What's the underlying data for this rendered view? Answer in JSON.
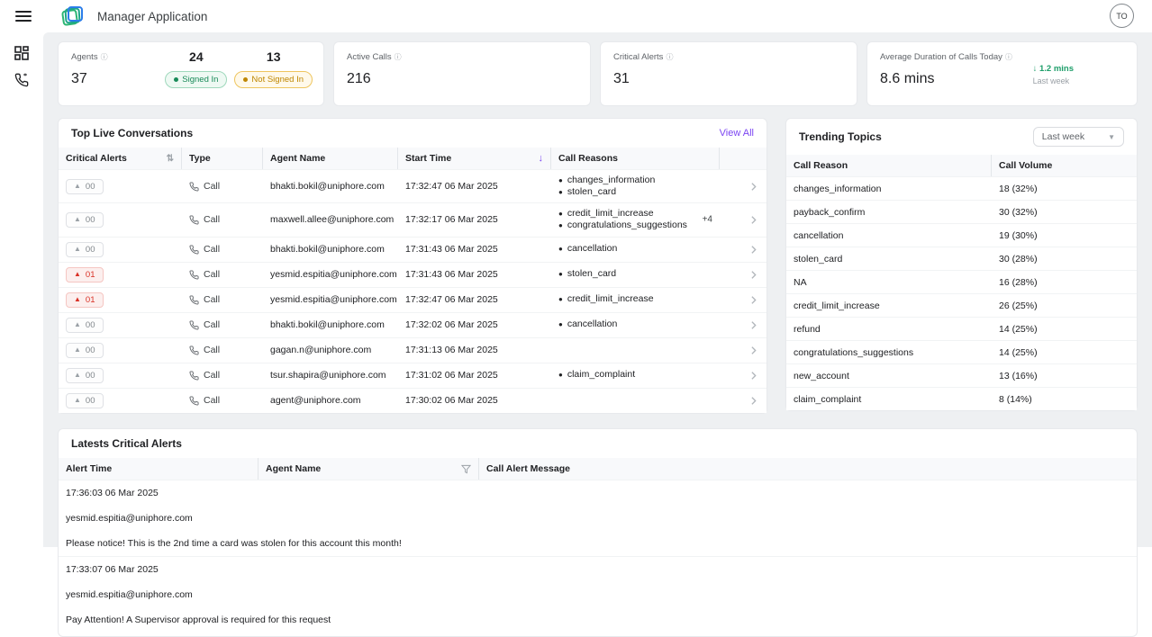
{
  "topbar": {
    "title": "Manager Application",
    "avatar": "TO"
  },
  "sidebar": {
    "items": [
      "menu",
      "dashboard",
      "calls"
    ]
  },
  "stats": {
    "agents": {
      "label": "Agents",
      "value": "37",
      "signed_in_count": "24",
      "signed_in_label": "Signed In",
      "not_signed_in_count": "13",
      "not_signed_in_label": "Not Signed In"
    },
    "active_calls": {
      "label": "Active Calls",
      "value": "216"
    },
    "critical_alerts": {
      "label": "Critical Alerts",
      "value": "31"
    },
    "avg_duration": {
      "label": "Average Duration of Calls Today",
      "value": "8.6 mins",
      "delta": "↓ 1.2 mins",
      "delta_caption": "Last week"
    }
  },
  "conversations": {
    "title": "Top Live Conversations",
    "view_all": "View All",
    "columns": {
      "alerts": "Critical Alerts",
      "type": "Type",
      "agent": "Agent Name",
      "start": "Start Time",
      "reasons": "Call Reasons"
    },
    "rows": [
      {
        "alerts": "00",
        "severity": "normal",
        "type": "Call",
        "agent": "bhakti.bokil@uniphore.com",
        "start_time": "17:32:47 06 Mar 2025",
        "reasons": [
          "changes_information",
          "stolen_card"
        ],
        "more": ""
      },
      {
        "alerts": "00",
        "severity": "normal",
        "type": "Call",
        "agent": "maxwell.allee@uniphore.com",
        "start_time": "17:32:17 06 Mar 2025",
        "reasons": [
          "credit_limit_increase",
          "congratulations_suggestions"
        ],
        "more": "+4"
      },
      {
        "alerts": "00",
        "severity": "normal",
        "type": "Call",
        "agent": "bhakti.bokil@uniphore.com",
        "start_time": "17:31:43 06 Mar 2025",
        "reasons": [
          "cancellation"
        ],
        "more": ""
      },
      {
        "alerts": "01",
        "severity": "critical",
        "type": "Call",
        "agent": "yesmid.espitia@uniphore.com",
        "start_time": "17:31:43 06 Mar 2025",
        "reasons": [
          "stolen_card"
        ],
        "more": ""
      },
      {
        "alerts": "01",
        "severity": "critical",
        "type": "Call",
        "agent": "yesmid.espitia@uniphore.com",
        "start_time": "17:32:47 06 Mar 2025",
        "reasons": [
          "credit_limit_increase"
        ],
        "more": ""
      },
      {
        "alerts": "00",
        "severity": "normal",
        "type": "Call",
        "agent": "bhakti.bokil@uniphore.com",
        "start_time": "17:32:02 06 Mar 2025",
        "reasons": [
          "cancellation"
        ],
        "more": ""
      },
      {
        "alerts": "00",
        "severity": "normal",
        "type": "Call",
        "agent": "gagan.n@uniphore.com",
        "start_time": "17:31:13 06 Mar 2025",
        "reasons": [],
        "more": ""
      },
      {
        "alerts": "00",
        "severity": "normal",
        "type": "Call",
        "agent": "tsur.shapira@uniphore.com",
        "start_time": "17:31:02 06 Mar 2025",
        "reasons": [
          "claim_complaint"
        ],
        "more": ""
      },
      {
        "alerts": "00",
        "severity": "normal",
        "type": "Call",
        "agent": "agent@uniphore.com",
        "start_time": "17:30:02 06 Mar 2025",
        "reasons": [],
        "more": ""
      }
    ]
  },
  "trending": {
    "title": "Trending Topics",
    "period": "Last week",
    "columns": {
      "reason": "Call Reason",
      "volume": "Call Volume"
    },
    "rows": [
      {
        "reason": "changes_information",
        "volume": "18 (32%)"
      },
      {
        "reason": "payback_confirm",
        "volume": "30 (32%)"
      },
      {
        "reason": "cancellation",
        "volume": "19 (30%)"
      },
      {
        "reason": "stolen_card",
        "volume": "30 (28%)"
      },
      {
        "reason": "NA",
        "volume": "16 (28%)"
      },
      {
        "reason": "credit_limit_increase",
        "volume": "26 (25%)"
      },
      {
        "reason": "refund",
        "volume": "14 (25%)"
      },
      {
        "reason": "congratulations_suggestions",
        "volume": "14 (25%)"
      },
      {
        "reason": "new_account",
        "volume": "13 (16%)"
      },
      {
        "reason": "claim_complaint",
        "volume": "8 (14%)"
      }
    ]
  },
  "critical_alerts_table": {
    "title": "Latests Critical Alerts",
    "columns": {
      "time": "Alert Time",
      "agent": "Agent Name",
      "message": "Call Alert Message"
    },
    "rows": [
      {
        "time": "17:36:03 06 Mar 2025",
        "agent": "yesmid.espitia@uniphore.com",
        "message": "Please notice! This is the 2nd time a card was stolen for this account this month!"
      },
      {
        "time": "17:33:07 06 Mar 2025",
        "agent": "yesmid.espitia@uniphore.com",
        "message": "Pay Attention! A Supervisor approval is required for this request"
      }
    ]
  },
  "colors": {
    "accent_purple": "#7b44f2",
    "signed_in_green": "#188a58",
    "not_signed_in_amber": "#bf8600",
    "critical_red": "#d93025",
    "delta_green": "#1e9e6a",
    "content_background": "#eef0f2"
  }
}
